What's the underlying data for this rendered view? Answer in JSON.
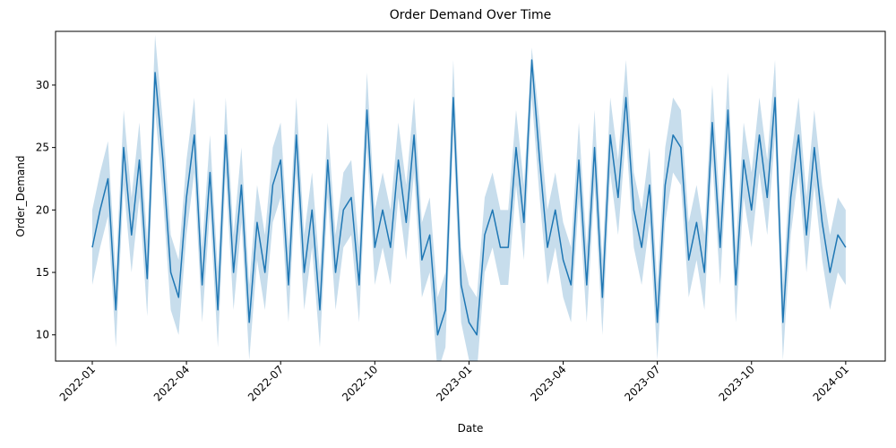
{
  "chart_data": {
    "type": "line",
    "title": "Order Demand Over Time",
    "x_label": "Date",
    "y_label": "Order_Demand",
    "color": "#1f77b4",
    "band_color": "#1f77b4",
    "band_opacity": 0.25,
    "xlim": [
      -1.17,
      25.26
    ],
    "ylim": [
      7.9,
      34.3
    ],
    "xticks": [
      {
        "value": 0,
        "label": "2022-01"
      },
      {
        "value": 3,
        "label": "2022-04"
      },
      {
        "value": 6,
        "label": "2022-07"
      },
      {
        "value": 9,
        "label": "2022-10"
      },
      {
        "value": 12,
        "label": "2023-01"
      },
      {
        "value": 15,
        "label": "2023-04"
      },
      {
        "value": 18,
        "label": "2023-07"
      },
      {
        "value": 21,
        "label": "2023-10"
      },
      {
        "value": 24,
        "label": "2024-01"
      }
    ],
    "yticks": [
      10,
      15,
      20,
      25,
      30
    ],
    "x": [
      0,
      0.25,
      0.5,
      0.75,
      1,
      1.25,
      1.5,
      1.75,
      2,
      2.25,
      2.5,
      2.75,
      3,
      3.25,
      3.5,
      3.75,
      4,
      4.25,
      4.5,
      4.75,
      5,
      5.25,
      5.5,
      5.75,
      6,
      6.25,
      6.5,
      6.75,
      7,
      7.25,
      7.5,
      7.75,
      8,
      8.25,
      8.5,
      8.75,
      9,
      9.25,
      9.5,
      9.75,
      10,
      10.25,
      10.5,
      10.75,
      11,
      11.25,
      11.5,
      11.75,
      12,
      12.25,
      12.5,
      12.75,
      13,
      13.25,
      13.5,
      13.75,
      14,
      14.25,
      14.5,
      14.75,
      15,
      15.25,
      15.5,
      15.75,
      16,
      16.25,
      16.5,
      16.75,
      17,
      17.25,
      17.5,
      17.75,
      18,
      18.25,
      18.5,
      18.75,
      19,
      19.25,
      19.5,
      19.75,
      20,
      20.25,
      20.5,
      20.75,
      21,
      21.25,
      21.5,
      21.75,
      22,
      22.25,
      22.5,
      22.75,
      23,
      23.25,
      23.5,
      23.75,
      24
    ],
    "values": [
      17,
      20,
      22.5,
      12,
      25,
      18,
      24,
      14.5,
      31,
      24,
      15,
      13,
      21,
      26,
      14,
      23,
      12,
      26,
      15,
      22,
      11,
      19,
      15,
      22,
      24,
      14,
      26,
      15,
      20,
      12,
      24,
      15,
      20,
      21,
      14,
      28,
      17,
      20,
      17,
      24,
      19,
      26,
      16,
      18,
      10,
      12,
      29,
      14,
      11,
      10,
      18,
      20,
      17,
      17,
      25,
      19,
      32,
      24,
      17,
      20,
      16,
      14,
      24,
      14,
      25,
      13,
      26,
      21,
      29,
      20,
      17,
      22,
      11,
      22,
      26,
      25,
      16,
      19,
      15,
      27,
      17,
      28,
      14,
      24,
      20,
      26,
      21,
      29,
      11,
      21,
      26,
      18,
      25,
      19,
      15,
      18,
      17
    ],
    "lower": [
      14,
      17,
      19.5,
      9,
      22,
      15,
      21,
      11.5,
      28,
      21,
      12,
      10,
      18,
      23,
      11,
      20,
      9,
      23,
      12,
      19,
      8,
      16,
      12,
      19,
      21,
      11,
      23,
      12,
      17,
      9,
      21,
      12,
      17,
      18,
      11,
      25,
      14,
      17,
      14,
      21,
      16,
      23,
      13,
      15,
      7,
      9,
      26,
      11,
      8,
      7,
      15,
      17,
      14,
      14,
      22,
      16,
      29,
      21,
      14,
      17,
      13,
      11,
      21,
      11,
      22,
      10,
      23,
      18,
      26,
      17,
      14,
      19,
      8,
      19,
      23,
      22,
      13,
      16,
      12,
      24,
      14,
      25,
      11,
      21,
      17,
      23,
      18,
      26,
      8,
      18,
      23,
      15,
      22,
      16,
      12,
      15,
      14
    ],
    "upper": [
      20,
      23,
      25.5,
      15,
      28,
      21,
      27,
      17.5,
      34,
      27,
      18,
      16,
      24,
      29,
      17,
      26,
      15,
      29,
      18,
      25,
      14,
      22,
      18,
      25,
      27,
      17,
      29,
      18,
      23,
      15,
      27,
      18,
      23,
      24,
      17,
      31,
      20,
      23,
      20,
      27,
      22,
      29,
      19,
      21,
      13,
      15,
      32,
      17,
      14,
      13,
      21,
      23,
      20,
      20,
      28,
      22,
      33,
      27,
      20,
      23,
      19,
      17,
      27,
      17,
      28,
      16,
      29,
      24,
      32,
      23,
      20,
      25,
      14,
      25,
      29,
      28,
      19,
      22,
      18,
      30,
      20,
      31,
      17,
      27,
      23,
      29,
      24,
      32,
      14,
      24,
      29,
      21,
      28,
      22,
      18,
      21,
      20
    ]
  }
}
